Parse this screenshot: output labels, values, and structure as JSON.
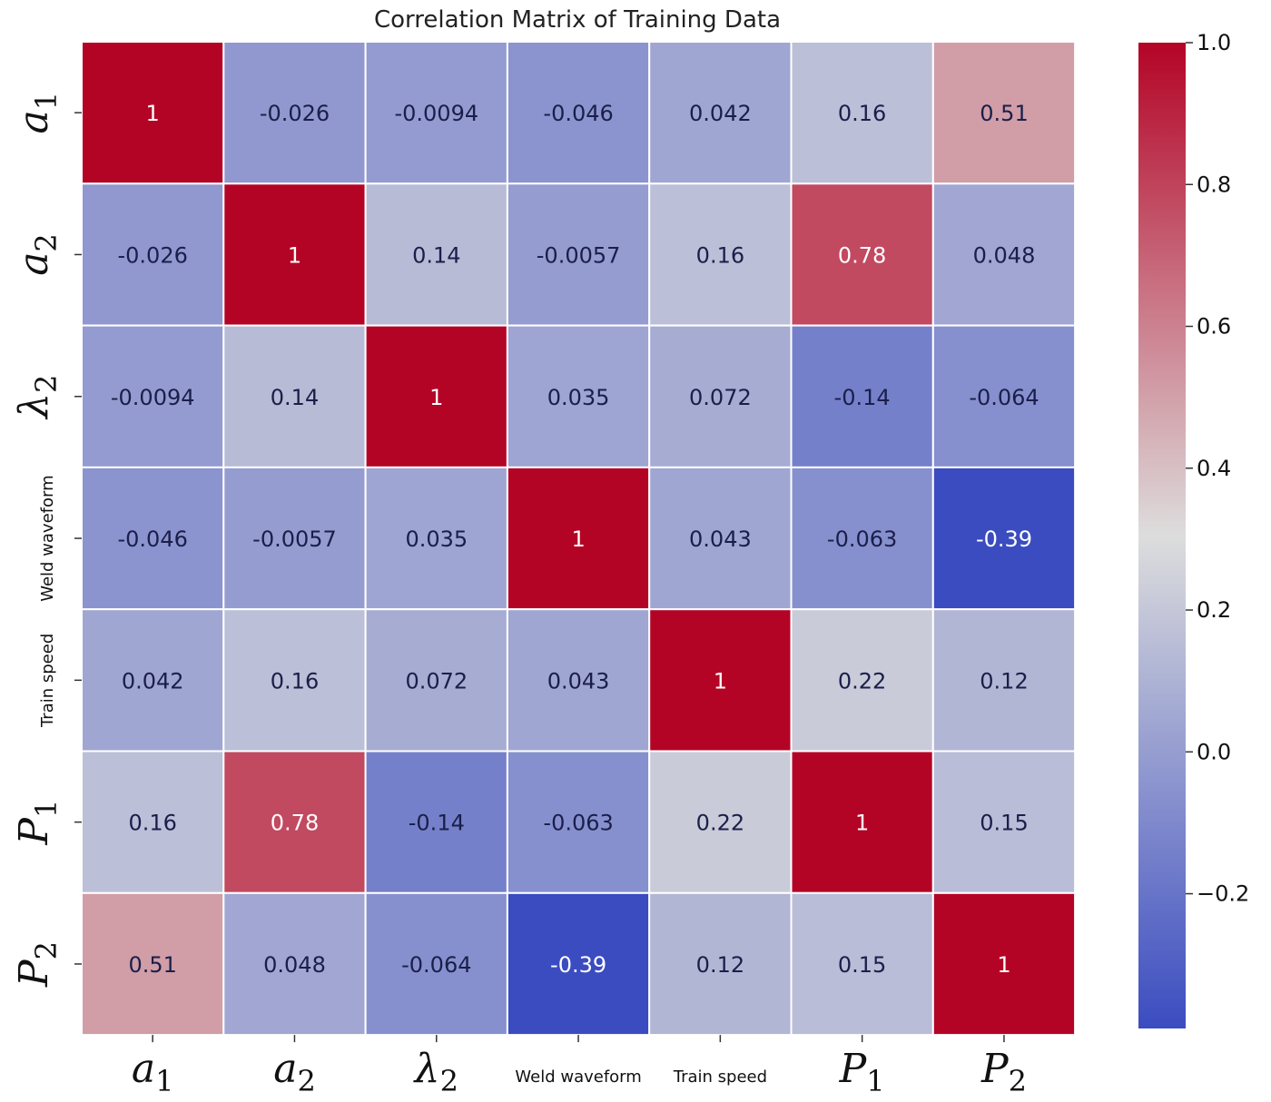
{
  "chart_data": {
    "type": "heatmap",
    "title": "Correlation Matrix of Training Data",
    "labels": [
      {
        "text": "a",
        "sub": "1",
        "math": true
      },
      {
        "text": "a",
        "sub": "2",
        "math": true
      },
      {
        "text": "λ",
        "sub": "2",
        "math": true
      },
      {
        "text": "Weld waveform",
        "sub": "",
        "math": false
      },
      {
        "text": "Train speed",
        "sub": "",
        "math": false
      },
      {
        "text": "P",
        "sub": "1",
        "math": true
      },
      {
        "text": "P",
        "sub": "2",
        "math": true
      }
    ],
    "values": [
      [
        1,
        -0.026,
        -0.0094,
        -0.046,
        0.042,
        0.16,
        0.51
      ],
      [
        -0.026,
        1,
        0.14,
        -0.0057,
        0.16,
        0.78,
        0.048
      ],
      [
        -0.0094,
        0.14,
        1,
        0.035,
        0.072,
        -0.14,
        -0.064
      ],
      [
        -0.046,
        -0.0057,
        0.035,
        1,
        0.043,
        -0.063,
        -0.39
      ],
      [
        0.042,
        0.16,
        0.072,
        0.043,
        1,
        0.22,
        0.12
      ],
      [
        0.16,
        0.78,
        -0.14,
        -0.063,
        0.22,
        1,
        0.15
      ],
      [
        0.51,
        0.048,
        -0.064,
        -0.39,
        0.12,
        0.15,
        1
      ]
    ],
    "cell_labels": [
      [
        "1",
        "-0.026",
        "-0.0094",
        "-0.046",
        "0.042",
        "0.16",
        "0.51"
      ],
      [
        "-0.026",
        "1",
        "0.14",
        "-0.0057",
        "0.16",
        "0.78",
        "0.048"
      ],
      [
        "-0.0094",
        "0.14",
        "1",
        "0.035",
        "0.072",
        "-0.14",
        "-0.064"
      ],
      [
        "-0.046",
        "-0.0057",
        "0.035",
        "1",
        "0.043",
        "-0.063",
        "-0.39"
      ],
      [
        "0.042",
        "0.16",
        "0.072",
        "0.043",
        "1",
        "0.22",
        "0.12"
      ],
      [
        "0.16",
        "0.78",
        "-0.14",
        "-0.063",
        "0.22",
        "1",
        "0.15"
      ],
      [
        "0.51",
        "0.048",
        "-0.064",
        "-0.39",
        "0.12",
        "0.15",
        "1"
      ]
    ],
    "colorbar": {
      "min": -0.39,
      "max": 1.0,
      "ticks": [
        1.0,
        0.8,
        0.6,
        0.4,
        0.2,
        0.0,
        -0.2
      ],
      "tick_labels": [
        "1.0",
        "0.8",
        "0.6",
        "0.4",
        "0.2",
        "0.0",
        "−0.2"
      ]
    },
    "colormap": "coolwarm",
    "colormap_stops": [
      "#3b4cc0",
      "#dddddd",
      "#b40426"
    ]
  }
}
